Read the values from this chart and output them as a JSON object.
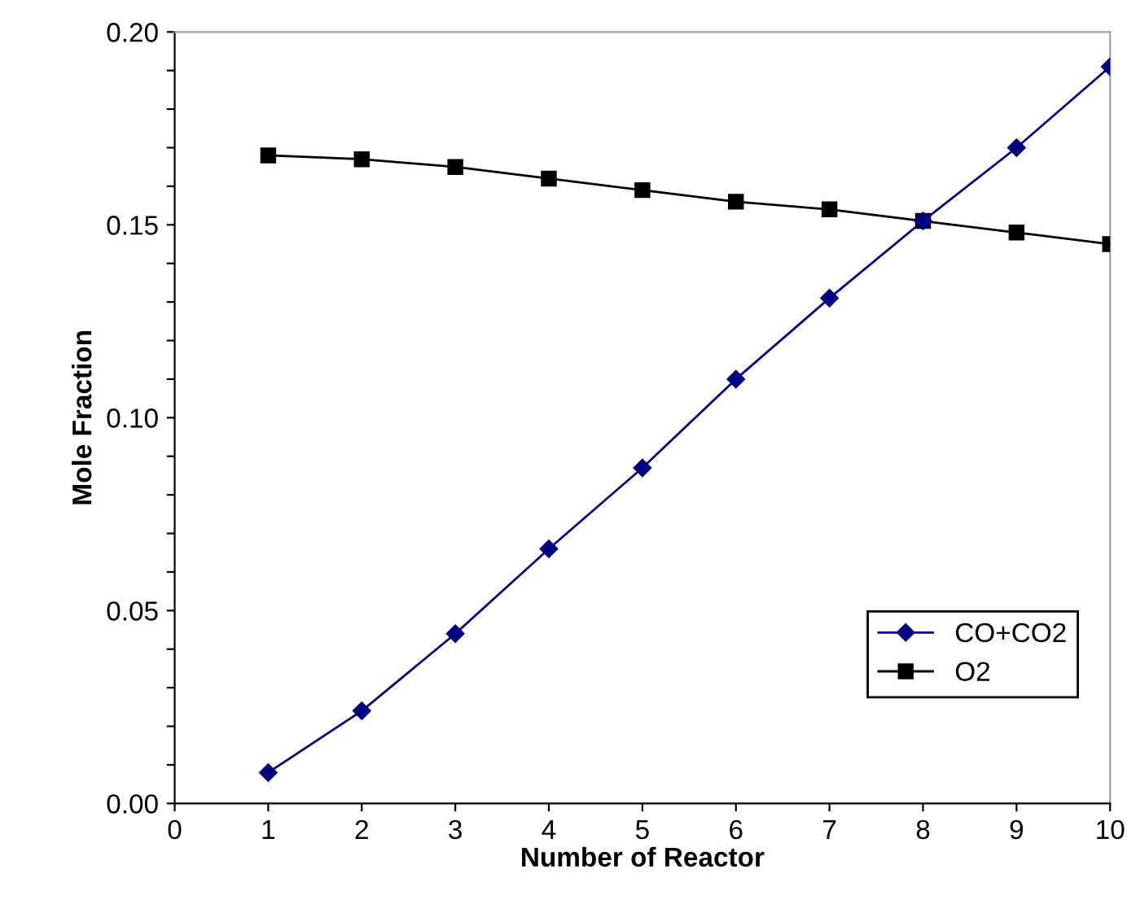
{
  "chart_data": {
    "type": "line",
    "xlabel": "Number of Reactor",
    "ylabel": "Mole Fraction",
    "x": [
      1,
      2,
      3,
      4,
      5,
      6,
      7,
      8,
      9,
      10
    ],
    "series": [
      {
        "name": "CO+CO2",
        "color": "#000080",
        "marker": "diamond",
        "values": [
          0.008,
          0.024,
          0.044,
          0.066,
          0.087,
          0.11,
          0.131,
          0.151,
          0.17,
          0.191
        ]
      },
      {
        "name": "O2",
        "color": "#000000",
        "marker": "square",
        "values": [
          0.168,
          0.167,
          0.165,
          0.162,
          0.159,
          0.156,
          0.154,
          0.151,
          0.148,
          0.145
        ]
      }
    ],
    "xlim": [
      0,
      10
    ],
    "xticks": [
      0,
      1,
      2,
      3,
      4,
      5,
      6,
      7,
      8,
      9,
      10
    ],
    "ylim": [
      0,
      0.2
    ],
    "yticks": [
      {
        "value": 0,
        "label": "0.00"
      },
      {
        "value": 0.01,
        "label": null
      },
      {
        "value": 0.02,
        "label": null
      },
      {
        "value": 0.03,
        "label": null
      },
      {
        "value": 0.04,
        "label": null
      },
      {
        "value": 0.05,
        "label": "0.05"
      },
      {
        "value": 0.06,
        "label": null
      },
      {
        "value": 0.07,
        "label": null
      },
      {
        "value": 0.08,
        "label": null
      },
      {
        "value": 0.09,
        "label": null
      },
      {
        "value": 0.1,
        "label": "0.10"
      },
      {
        "value": 0.11,
        "label": null
      },
      {
        "value": 0.12,
        "label": null
      },
      {
        "value": 0.13,
        "label": null
      },
      {
        "value": 0.14,
        "label": null
      },
      {
        "value": 0.15,
        "label": "0.15"
      },
      {
        "value": 0.16,
        "label": null
      },
      {
        "value": 0.17,
        "label": null
      },
      {
        "value": 0.18,
        "label": null
      },
      {
        "value": 0.19,
        "label": null
      },
      {
        "value": 0.2,
        "label": "0.20"
      }
    ],
    "grid": false,
    "legend": "bottom right",
    "line_style": "solid"
  }
}
